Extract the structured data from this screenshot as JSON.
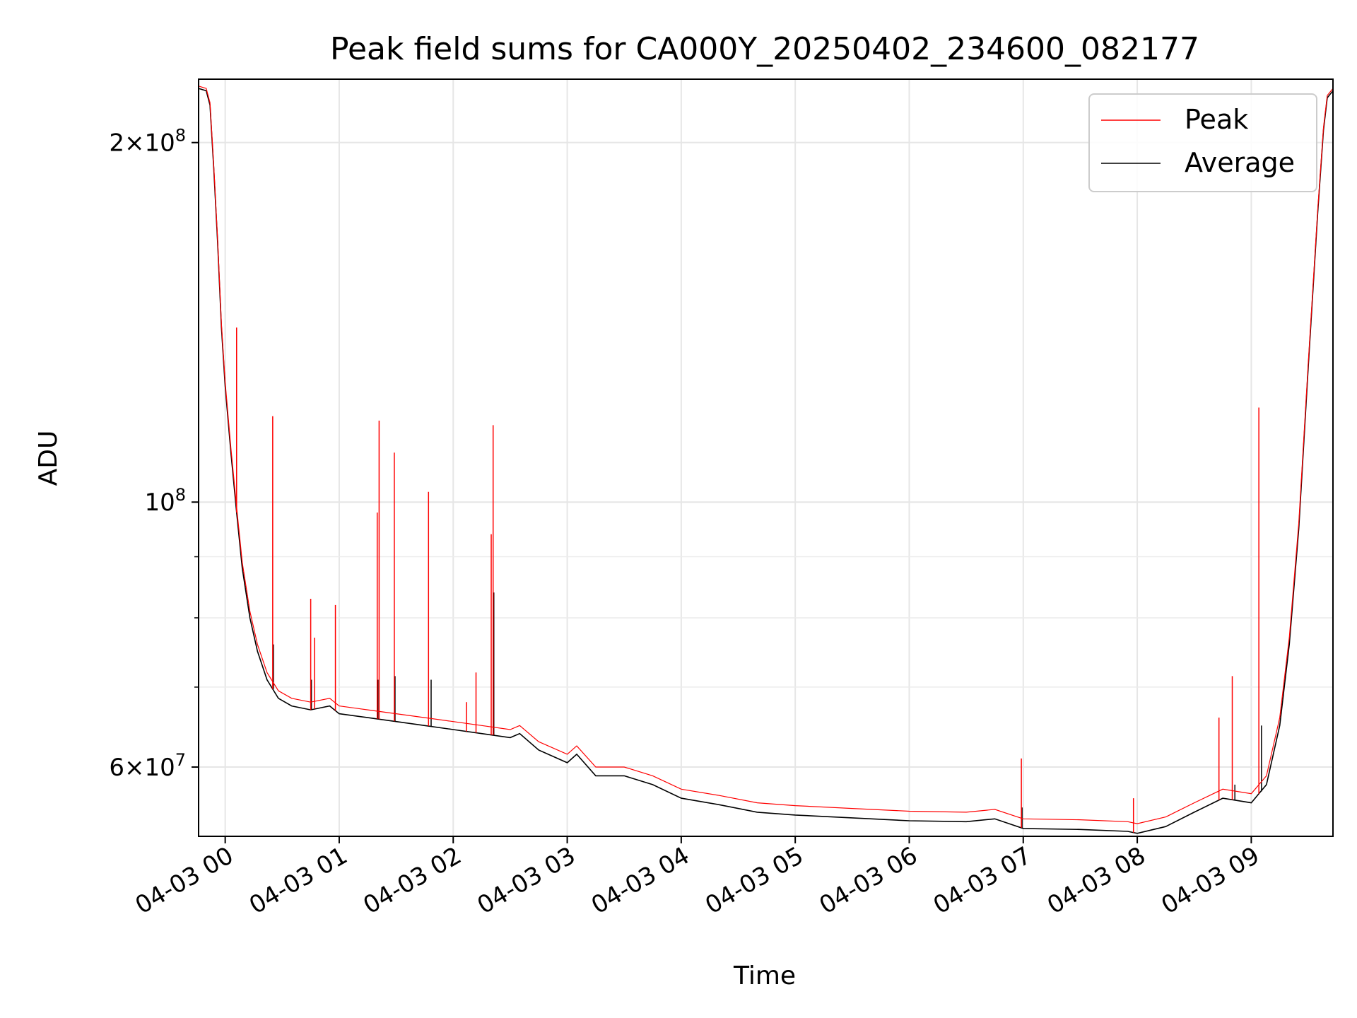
{
  "chart_data": {
    "type": "line",
    "title": "Peak field sums for CA000Y_20250402_234600_082177",
    "xlabel": "Time",
    "ylabel": "ADU",
    "y_scale": "log",
    "ylim": [
      52500000,
      226000000
    ],
    "xlim": [
      "2025-04-02 23:46",
      "2025-04-03 09:43"
    ],
    "grid": true,
    "legend_position": "top-right",
    "x_ticks": [
      {
        "t": "2025-04-03 00:00",
        "label": "04-03 00"
      },
      {
        "t": "2025-04-03 01:00",
        "label": "04-03 01"
      },
      {
        "t": "2025-04-03 02:00",
        "label": "04-03 02"
      },
      {
        "t": "2025-04-03 03:00",
        "label": "04-03 03"
      },
      {
        "t": "2025-04-03 04:00",
        "label": "04-03 04"
      },
      {
        "t": "2025-04-03 05:00",
        "label": "04-03 05"
      },
      {
        "t": "2025-04-03 06:00",
        "label": "04-03 06"
      },
      {
        "t": "2025-04-03 07:00",
        "label": "04-03 07"
      },
      {
        "t": "2025-04-03 08:00",
        "label": "04-03 08"
      },
      {
        "t": "2025-04-03 09:00",
        "label": "04-03 09"
      }
    ],
    "y_ticks_major": [
      {
        "v": 60000000,
        "mant": "6",
        "exp": "7"
      },
      {
        "v": 100000000,
        "mant": "",
        "exp": "8"
      },
      {
        "v": 200000000,
        "mant": "2",
        "exp": "8"
      }
    ],
    "y_ticks_minor": [
      70000000,
      80000000,
      90000000
    ],
    "series": [
      {
        "name": "Average",
        "color": "#000000",
        "points": [
          [
            "2025-04-02 23:46",
            222000000
          ],
          [
            "2025-04-02 23:50",
            221000000
          ],
          [
            "2025-04-02 23:52",
            215000000
          ],
          [
            "2025-04-02 23:54",
            190000000
          ],
          [
            "2025-04-02 23:56",
            165000000
          ],
          [
            "2025-04-02 23:58",
            140000000
          ],
          [
            "2025-04-03 00:00",
            125000000
          ],
          [
            "2025-04-03 00:03",
            110000000
          ],
          [
            "2025-04-03 00:06",
            98000000
          ],
          [
            "2025-04-03 00:09",
            88000000
          ],
          [
            "2025-04-03 00:13",
            80000000
          ],
          [
            "2025-04-03 00:17",
            75000000
          ],
          [
            "2025-04-03 00:22",
            71000000
          ],
          [
            "2025-04-03 00:28",
            68500000
          ],
          [
            "2025-04-03 00:35",
            67500000
          ],
          [
            "2025-04-03 00:45",
            67000000
          ],
          [
            "2025-04-03 00:55",
            67500000
          ],
          [
            "2025-04-03 01:00",
            66500000
          ],
          [
            "2025-04-03 01:15",
            66000000
          ],
          [
            "2025-04-03 01:30",
            65500000
          ],
          [
            "2025-04-03 01:45",
            65000000
          ],
          [
            "2025-04-03 02:00",
            64500000
          ],
          [
            "2025-04-03 02:15",
            64000000
          ],
          [
            "2025-04-03 02:30",
            63500000
          ],
          [
            "2025-04-03 02:35",
            64000000
          ],
          [
            "2025-04-03 02:45",
            62000000
          ],
          [
            "2025-04-03 03:00",
            60500000
          ],
          [
            "2025-04-03 03:05",
            61500000
          ],
          [
            "2025-04-03 03:15",
            59000000
          ],
          [
            "2025-04-03 03:30",
            59000000
          ],
          [
            "2025-04-03 03:45",
            58000000
          ],
          [
            "2025-04-03 04:00",
            56500000
          ],
          [
            "2025-04-03 04:20",
            55800000
          ],
          [
            "2025-04-03 04:40",
            55000000
          ],
          [
            "2025-04-03 05:00",
            54700000
          ],
          [
            "2025-04-03 05:30",
            54400000
          ],
          [
            "2025-04-03 06:00",
            54100000
          ],
          [
            "2025-04-03 06:30",
            54000000
          ],
          [
            "2025-04-03 06:45",
            54300000
          ],
          [
            "2025-04-03 07:00",
            53300000
          ],
          [
            "2025-04-03 07:30",
            53200000
          ],
          [
            "2025-04-03 07:55",
            53000000
          ],
          [
            "2025-04-03 08:00",
            52800000
          ],
          [
            "2025-04-03 08:15",
            53500000
          ],
          [
            "2025-04-03 08:30",
            55000000
          ],
          [
            "2025-04-03 08:45",
            56500000
          ],
          [
            "2025-04-03 09:00",
            56000000
          ],
          [
            "2025-04-03 09:08",
            58000000
          ],
          [
            "2025-04-03 09:15",
            65000000
          ],
          [
            "2025-04-03 09:20",
            76000000
          ],
          [
            "2025-04-03 09:25",
            95000000
          ],
          [
            "2025-04-03 09:30",
            130000000
          ],
          [
            "2025-04-03 09:35",
            175000000
          ],
          [
            "2025-04-03 09:38",
            205000000
          ],
          [
            "2025-04-03 09:40",
            218000000
          ],
          [
            "2025-04-03 09:43",
            221000000
          ]
        ],
        "spikes": [
          [
            "2025-04-03 00:25",
            76000000
          ],
          [
            "2025-04-03 00:45",
            71000000
          ],
          [
            "2025-04-03 01:20",
            71000000
          ],
          [
            "2025-04-03 01:29",
            71500000
          ],
          [
            "2025-04-03 01:48",
            71000000
          ],
          [
            "2025-04-03 02:21",
            84000000
          ],
          [
            "2025-04-03 06:59",
            55500000
          ],
          [
            "2025-04-03 08:51",
            58000000
          ],
          [
            "2025-04-03 09:05",
            65000000
          ]
        ]
      },
      {
        "name": "Peak",
        "color": "#ff0000",
        "offset_above_average": 1000000,
        "spikes": [
          [
            "2025-04-03 00:06",
            140000000
          ],
          [
            "2025-04-03 00:25",
            118000000
          ],
          [
            "2025-04-03 00:45",
            83000000
          ],
          [
            "2025-04-03 00:47",
            77000000
          ],
          [
            "2025-04-03 00:58",
            82000000
          ],
          [
            "2025-04-03 01:20",
            98000000
          ],
          [
            "2025-04-03 01:21",
            117000000
          ],
          [
            "2025-04-03 01:29",
            110000000
          ],
          [
            "2025-04-03 01:47",
            102000000
          ],
          [
            "2025-04-03 02:07",
            68000000
          ],
          [
            "2025-04-03 02:12",
            72000000
          ],
          [
            "2025-04-03 02:20",
            94000000
          ],
          [
            "2025-04-03 02:21",
            116000000
          ],
          [
            "2025-04-03 06:59",
            61000000
          ],
          [
            "2025-04-03 07:58",
            56500000
          ],
          [
            "2025-04-03 08:43",
            66000000
          ],
          [
            "2025-04-03 08:50",
            71500000
          ],
          [
            "2025-04-03 09:04",
            120000000
          ]
        ]
      }
    ]
  }
}
